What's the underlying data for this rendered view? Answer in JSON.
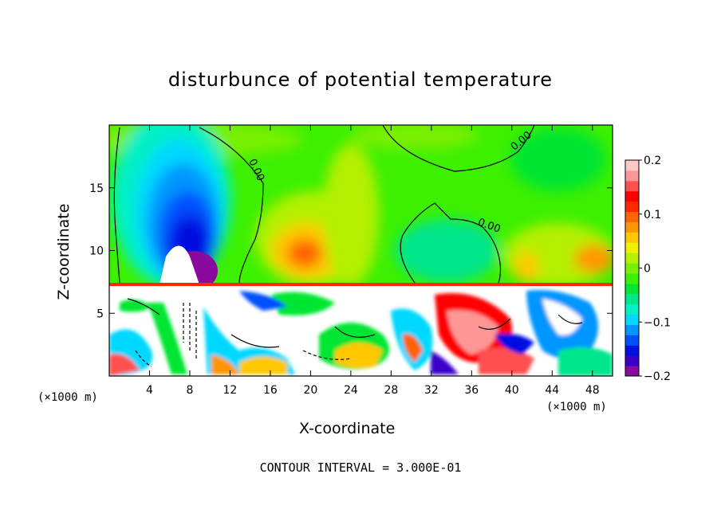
{
  "chart_data": {
    "type": "heatmap",
    "title": "disturbunce of potential temperature",
    "xlabel": "X-coordinate",
    "ylabel": "Z-coordinate",
    "x_unit_label": "(×1000 m)",
    "x_ticks": [
      4,
      8,
      12,
      16,
      20,
      24,
      28,
      32,
      36,
      40,
      44,
      48
    ],
    "y_ticks": [
      5,
      10,
      15
    ],
    "xlim": [
      0,
      50
    ],
    "ylim": [
      0,
      20
    ],
    "colorbar": {
      "ticks": [
        "0.2",
        "0.1",
        "0",
        "−0.1",
        "−0.2"
      ],
      "range": [
        -0.2,
        0.2
      ],
      "colors": [
        "#8a0aa0",
        "#3a00c8",
        "#0010e0",
        "#0050ff",
        "#0096ff",
        "#00d8ff",
        "#00f0c8",
        "#00e68c",
        "#00e632",
        "#3cf000",
        "#78f000",
        "#b4f000",
        "#f0f000",
        "#ffc800",
        "#ff9600",
        "#ff6400",
        "#ff2800",
        "#ff0000",
        "#ff5050",
        "#ff9696",
        "#ffc8c8"
      ]
    },
    "contour_label": "0.00",
    "annotation": "CONTOUR INTERVAL = 3.000E-01"
  }
}
